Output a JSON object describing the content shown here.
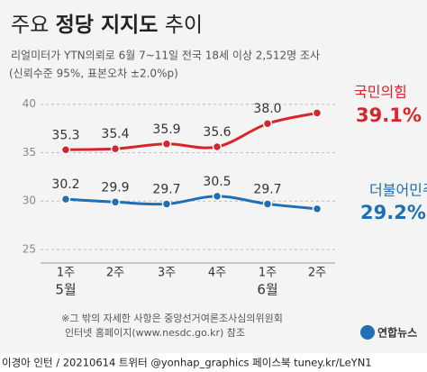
{
  "chart_data": {
    "type": "line",
    "title": [
      "주요",
      "정당 지지도",
      "추이"
    ],
    "subtitle": [
      "리얼미터가 YTN의뢰로 6월 7~11일 전국 18세 이상 2,512명 조사",
      "(신뢰수준 95%, 표본오차 ±2.0%p)"
    ],
    "categories": [
      "1주",
      "2주",
      "3주",
      "4주",
      "1주",
      "2주"
    ],
    "x_groups": [
      "5월",
      null,
      null,
      null,
      "6월",
      null
    ],
    "series": [
      {
        "name": "국민의힘",
        "color": "#d7262b",
        "values": [
          35.3,
          35.4,
          35.9,
          35.6,
          38.0,
          39.1
        ],
        "value_labels": [
          "35.3",
          "35.4",
          "35.9",
          "35.6",
          "38.0",
          "39.1%"
        ]
      },
      {
        "name": "더불어민주당",
        "color": "#1f6fb5",
        "values": [
          30.2,
          29.9,
          29.7,
          30.5,
          29.7,
          29.2
        ],
        "value_labels": [
          "30.2",
          "29.9",
          "29.7",
          "30.5",
          "29.7",
          "29.2%"
        ]
      }
    ],
    "ylim": [
      23.6,
      41
    ],
    "yticks": [
      25,
      30,
      35,
      40
    ],
    "grid": true,
    "notes": [
      "※그 밖의 자세한 사항은 중앙선거여론조사심의위원회",
      "인터넷 홈페이지(www.nesdc.go.kr) 참조"
    ],
    "logo": "연합뉴스",
    "credit": "이경아  인턴 / 20210614 트위터 @yonhap_graphics  페이스북 tuney.kr/LeYN1"
  }
}
